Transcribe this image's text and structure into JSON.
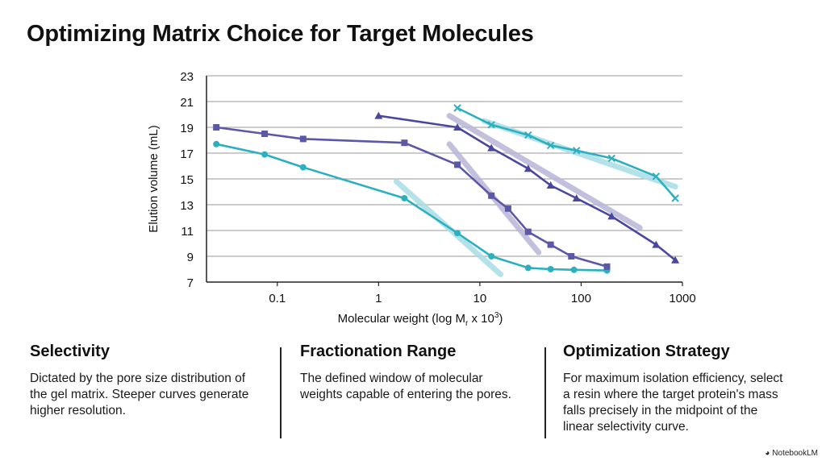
{
  "header": {
    "title": "Optimizing Matrix Choice for Target Molecules"
  },
  "chart_data": {
    "type": "line",
    "xscale": "log",
    "xlabel": "Molecular weight (log M",
    "xlabel_sub": "r",
    "xlabel_tail": " x 10",
    "xlabel_sup": "3",
    "xlabel_close": ")",
    "ylabel": "Elution volume (mL)",
    "xlim": [
      0.02,
      1000
    ],
    "ylim": [
      7,
      23
    ],
    "xticks": [
      0.1,
      1,
      10,
      100,
      1000
    ],
    "xtick_labels": [
      "0.1",
      "1",
      "10",
      "100",
      "1000"
    ],
    "yticks": [
      7,
      9,
      11,
      13,
      15,
      17,
      19,
      21,
      23
    ],
    "ytick_labels": [
      "7",
      "9",
      "11",
      "13",
      "15",
      "17",
      "19",
      "21",
      "23"
    ],
    "grid": "horizontal",
    "series": [
      {
        "marker": "circle",
        "color": "#2bb0c0",
        "x": [
          0.025,
          0.075,
          0.18,
          1.8,
          6,
          13,
          30,
          50,
          85,
          180
        ],
        "y": [
          17.7,
          16.9,
          15.9,
          13.5,
          10.8,
          9.0,
          8.1,
          8.0,
          7.95,
          7.9
        ]
      },
      {
        "marker": "square",
        "color": "#5b58a8",
        "x": [
          0.025,
          0.075,
          0.18,
          1.8,
          6,
          13,
          19,
          30,
          50,
          80,
          180
        ],
        "y": [
          19.0,
          18.5,
          18.1,
          17.8,
          16.1,
          13.7,
          12.7,
          10.9,
          9.9,
          9.0,
          8.2
        ]
      },
      {
        "marker": "triangle",
        "color": "#4a47a0",
        "x": [
          1,
          6,
          13,
          30,
          50,
          90,
          200,
          550,
          850
        ],
        "y": [
          19.9,
          19.0,
          17.4,
          15.8,
          14.5,
          13.5,
          12.1,
          9.9,
          8.7
        ]
      },
      {
        "marker": "cross",
        "color": "#2bb0c0",
        "x": [
          6,
          13,
          30,
          50,
          90,
          200,
          550,
          850
        ],
        "y": [
          20.5,
          19.2,
          18.4,
          17.6,
          17.2,
          16.6,
          15.2,
          13.5
        ]
      }
    ],
    "selectivity_bands": [
      {
        "color": "#a8dde4",
        "x": [
          1.5,
          16
        ],
        "y": [
          14.8,
          7.6
        ]
      },
      {
        "color": "#b8b6d8",
        "x": [
          5,
          38
        ],
        "y": [
          17.7,
          9.3
        ]
      },
      {
        "color": "#b8b6d8",
        "x": [
          5,
          380
        ],
        "y": [
          19.9,
          11.2
        ]
      },
      {
        "color": "#a8dde4",
        "x": [
          11,
          850
        ],
        "y": [
          19.5,
          14.4
        ]
      }
    ]
  },
  "columns": [
    {
      "heading": "Selectivity",
      "body": "Dictated by the pore size distribution of the gel matrix. Steeper curves generate higher resolution."
    },
    {
      "heading": "Fractionation Range",
      "body": "The defined window of molecular weights capable of entering the pores."
    },
    {
      "heading": "Optimization Strategy",
      "body": "For maximum isolation efficiency, select a resin where the target protein's mass falls precisely in the midpoint of the linear selectivity curve."
    }
  ],
  "brand": {
    "logo_icon": "notebooklm-logo-icon",
    "label": "NotebookLM"
  }
}
